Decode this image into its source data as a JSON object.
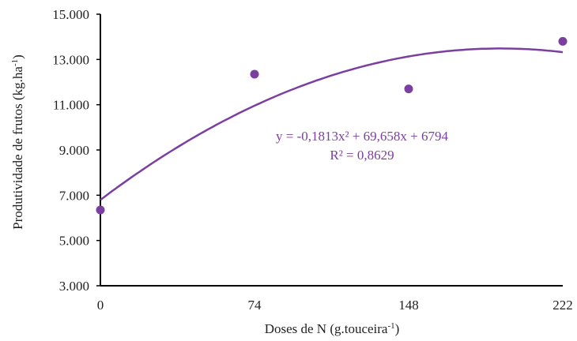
{
  "chart_data": {
    "type": "scatter",
    "title": "",
    "xlabel_main": "Doses de N (g.touceira",
    "xlabel_sup": "-1",
    "xlabel_end": ")",
    "ylabel_main": "Produtividade de frutos (kg.ha",
    "ylabel_sup": "-1",
    "ylabel_end": ")",
    "x_ticks": [
      "0",
      "74",
      "148",
      "222"
    ],
    "y_ticks": [
      "3.000",
      "5.000",
      "7.000",
      "9.000",
      "11.000",
      "13.000",
      "15.000"
    ],
    "xlim": [
      0,
      222
    ],
    "ylim": [
      3000,
      15000
    ],
    "grid": false,
    "series": [
      {
        "x": [
          0,
          74,
          148,
          222
        ],
        "values": [
          6350,
          12350,
          11700,
          13800
        ]
      }
    ],
    "trendline": {
      "type": "polynomial",
      "coefficients": {
        "a": -0.1813,
        "b": 69.658,
        "c": 6794
      },
      "equation": "y = -0,1813x² + 69,658x + 6794",
      "r2": "R² = 0,8629"
    },
    "colors": {
      "marker": "#7b3fa0",
      "trendline": "#7b3fa0",
      "axis": "#000000"
    }
  }
}
